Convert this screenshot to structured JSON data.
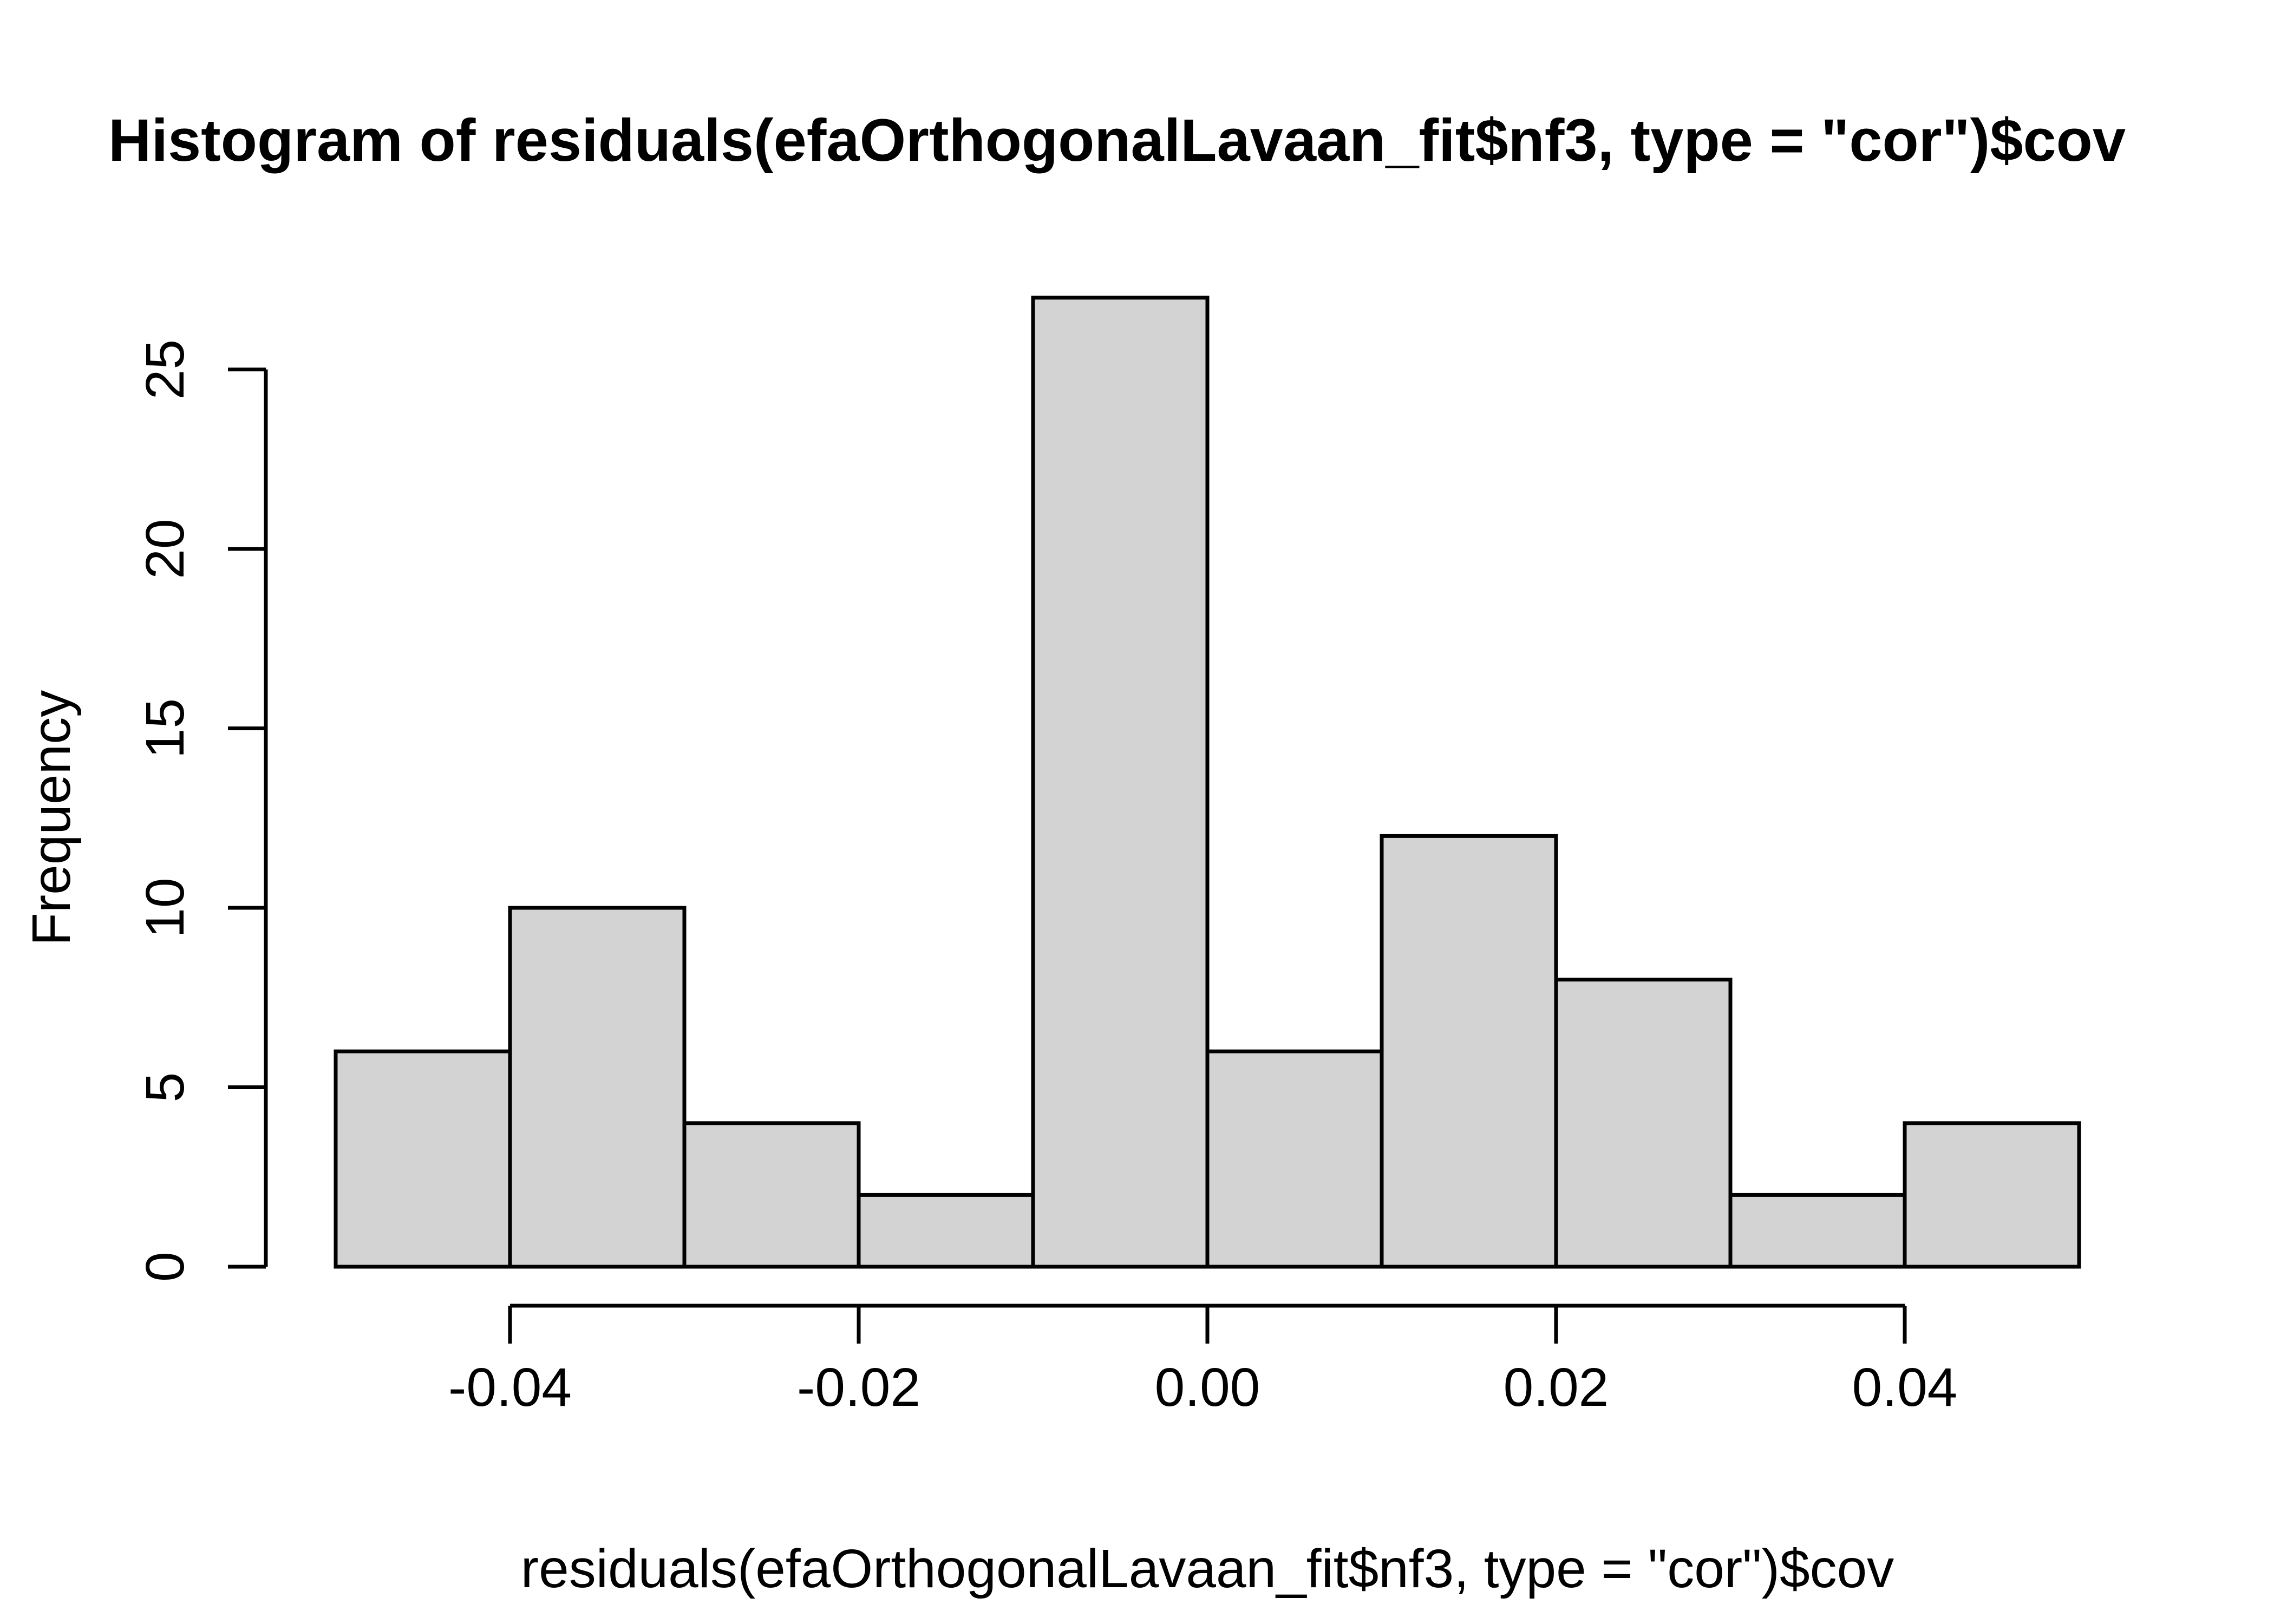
{
  "title": "Histogram of residuals(efaOrthogonalLavaan_fit$nf3, type = \"cor\")$cov",
  "chart_data": {
    "type": "bar",
    "kind": "histogram",
    "title": "Histogram of residuals(efaOrthogonalLavaan_fit$nf3, type = \"cor\")$cov",
    "xlabel": "residuals(efaOrthogonalLavaan_fit$nf3, type = \"cor\")$cov",
    "ylabel": "Frequency",
    "bin_edges": [
      -0.05,
      -0.04,
      -0.03,
      -0.02,
      -0.01,
      0.0,
      0.01,
      0.02,
      0.03,
      0.04,
      0.05
    ],
    "values": [
      6,
      10,
      4,
      2,
      27,
      6,
      12,
      8,
      2,
      4
    ],
    "xticks": [
      {
        "value": -0.04,
        "label": "-0.04"
      },
      {
        "value": -0.02,
        "label": "-0.02"
      },
      {
        "value": 0.0,
        "label": "0.00"
      },
      {
        "value": 0.02,
        "label": "0.02"
      },
      {
        "value": 0.04,
        "label": "0.04"
      }
    ],
    "yticks": [
      {
        "value": 0,
        "label": "0"
      },
      {
        "value": 5,
        "label": "5"
      },
      {
        "value": 10,
        "label": "10"
      },
      {
        "value": 15,
        "label": "15"
      },
      {
        "value": 20,
        "label": "20"
      },
      {
        "value": 25,
        "label": "25"
      }
    ],
    "xlim": [
      -0.054,
      0.054
    ],
    "ylim": [
      0,
      27
    ],
    "grid": false,
    "legend": null,
    "colors": {
      "bar_fill": "#d3d3d3",
      "bar_stroke": "#000000",
      "axis": "#000000",
      "text": "#000000",
      "background": "#ffffff"
    }
  }
}
